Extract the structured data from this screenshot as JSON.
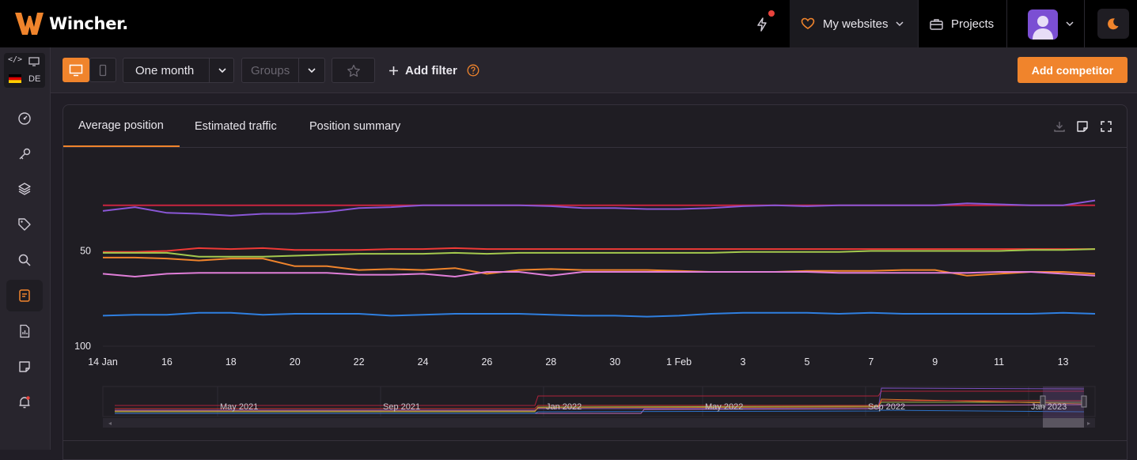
{
  "app": {
    "logo_text": "Wincher."
  },
  "header": {
    "my_websites_label": "My websites",
    "projects_label": "Projects"
  },
  "sidebar": {
    "country_code": "DE",
    "items": [
      "dashboard-icon",
      "key-icon",
      "layers-icon",
      "tag-icon",
      "search-icon",
      "competitors-icon",
      "report-icon",
      "notes-icon",
      "alerts-icon"
    ]
  },
  "toolbar": {
    "period_value": "One month",
    "groups_placeholder": "Groups",
    "add_filter_label": "Add filter",
    "add_competitor_label": "Add competitor"
  },
  "tabs": [
    {
      "label": "Average position",
      "active": true
    },
    {
      "label": "Estimated traffic",
      "active": false
    },
    {
      "label": "Position summary",
      "active": false
    }
  ],
  "colors": {
    "accent": "#f0842c",
    "background": "#1f1d23"
  },
  "chart_data": {
    "type": "line",
    "x": [
      "14 Jan",
      "15",
      "16",
      "17",
      "18",
      "19",
      "20",
      "21",
      "22",
      "23",
      "24",
      "25",
      "26",
      "27",
      "28",
      "29",
      "30",
      "31",
      "1 Feb",
      "2",
      "3",
      "4",
      "5",
      "6",
      "7",
      "8",
      "9",
      "10",
      "11",
      "12",
      "13",
      "14"
    ],
    "x_tick_labels": [
      "14 Jan",
      "16",
      "18",
      "20",
      "22",
      "24",
      "26",
      "28",
      "30",
      "1 Feb",
      "3",
      "5",
      "7",
      "9",
      "11",
      "13"
    ],
    "y_tick_labels": [
      "50",
      "100"
    ],
    "ylim": [
      100,
      0
    ],
    "y_inverted": true,
    "grid": false,
    "series": [
      {
        "color": "#c8243f",
        "values": [
          26,
          26,
          26,
          26,
          26,
          26,
          26,
          26,
          26,
          26,
          26,
          26,
          26,
          26,
          26,
          26,
          26,
          26,
          26,
          26,
          26,
          26,
          26,
          26,
          26,
          26,
          26,
          26,
          26,
          26,
          26,
          26
        ]
      },
      {
        "color": "#8a57d6",
        "values": [
          29,
          27,
          30,
          30.5,
          31.5,
          30.5,
          30.5,
          29.5,
          27.5,
          27,
          26,
          26,
          26,
          26,
          26.5,
          27.5,
          27.5,
          28,
          28,
          27.5,
          26.5,
          26,
          26.5,
          26,
          26,
          26,
          26,
          25,
          25.5,
          26,
          26,
          23.5
        ]
      },
      {
        "color": "#ee3a36",
        "values": [
          50.5,
          50.5,
          50,
          48.5,
          49,
          48.5,
          49.5,
          49.5,
          49.5,
          49,
          49,
          48.5,
          49,
          49,
          49,
          49,
          49,
          49,
          49,
          49,
          49,
          49,
          49,
          49,
          49,
          49,
          49,
          49,
          49,
          49,
          49,
          49
        ]
      },
      {
        "color": "#a4c94e",
        "values": [
          51,
          51,
          51,
          53,
          53,
          53,
          52.5,
          52,
          51.5,
          51.5,
          51.5,
          51,
          51.5,
          51,
          51,
          51,
          51,
          51,
          51,
          51,
          50.5,
          50.5,
          50.5,
          50.5,
          50,
          50,
          50,
          50,
          50,
          49.5,
          49.5,
          49
        ]
      },
      {
        "color": "#f0842c",
        "values": [
          53.5,
          53.5,
          54,
          55,
          54,
          54,
          58,
          58,
          60,
          59.5,
          60,
          59,
          62,
          60,
          59.5,
          60,
          60,
          60,
          60.5,
          61,
          61,
          61,
          60.5,
          60.5,
          60.5,
          60,
          60,
          63,
          62,
          61,
          61,
          62
        ]
      },
      {
        "color": "#e07ed8",
        "values": [
          62,
          63.5,
          62,
          61.5,
          61.5,
          61.5,
          61.5,
          61.5,
          62.5,
          62.5,
          62,
          63.5,
          61,
          61,
          63,
          61,
          61,
          61,
          61,
          61,
          61,
          61,
          61,
          61.5,
          61.5,
          61.5,
          61.5,
          61.5,
          61,
          61,
          62,
          63
        ]
      },
      {
        "color": "#2f7fe0",
        "values": [
          84,
          83.5,
          83.5,
          82.5,
          82.5,
          83.5,
          83,
          83,
          83,
          84,
          83.5,
          83,
          83,
          83,
          83.5,
          84,
          84,
          84.5,
          84,
          83,
          82.5,
          82.5,
          82.5,
          83,
          82.5,
          83,
          83,
          83,
          83,
          83,
          82.5,
          83
        ]
      }
    ],
    "navigator_labels": [
      "May 2021",
      "Sep 2021",
      "Jan 2022",
      "May 2022",
      "Sep 2022",
      "Jan 2023"
    ]
  }
}
